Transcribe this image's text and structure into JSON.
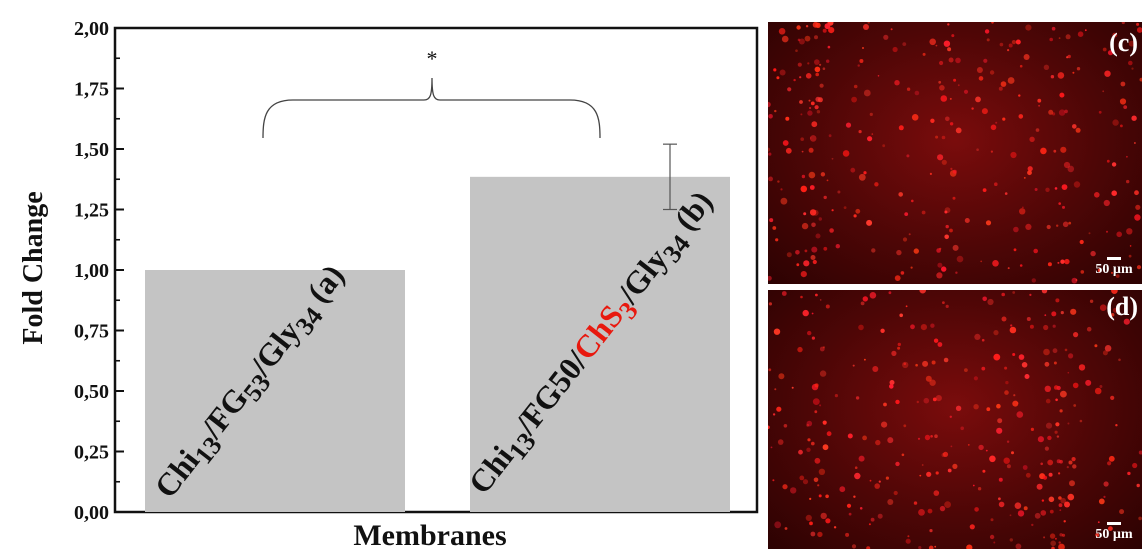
{
  "chart_data": {
    "type": "bar",
    "categories": [
      "Chi13/FG53/Gly34 (a)",
      "Chi13/FG50/ChS3/Gly34 (b)"
    ],
    "values": [
      1.0,
      1.385
    ],
    "error_bars": [
      null,
      0.135
    ],
    "ylabel": "Fold Change",
    "xlabel": "Membranes",
    "ylim": [
      0,
      2
    ],
    "yticks": [
      "0,00",
      "0,25",
      "0,50",
      "0,75",
      "1,00",
      "1,25",
      "1,50",
      "1,75",
      "2,00"
    ],
    "ytick_values": [
      0,
      0.25,
      0.5,
      0.75,
      1.0,
      1.25,
      1.5,
      1.75,
      2.0
    ],
    "significance": "*",
    "bar_color": "#c4c4c4",
    "highlight_color": "#e8190f",
    "bar_label_segments": [
      [
        {
          "t": "Chi",
          "s": "n"
        },
        {
          "t": "13",
          "s": "sub"
        },
        {
          "t": "/FG",
          "s": "n"
        },
        {
          "t": "53",
          "s": "sub"
        },
        {
          "t": "/Gly",
          "s": "n"
        },
        {
          "t": "34",
          "s": "sub"
        },
        {
          "t": " (a)",
          "s": "n"
        }
      ],
      [
        {
          "t": "Chi",
          "s": "n"
        },
        {
          "t": "13",
          "s": "sub"
        },
        {
          "t": "/FG50/",
          "s": "n"
        },
        {
          "t": "ChS",
          "s": "red"
        },
        {
          "t": "3",
          "s": "redsub"
        },
        {
          "t": "/Gly",
          "s": "n"
        },
        {
          "t": "34",
          "s": "sub"
        },
        {
          "t": " (b)",
          "s": "n"
        }
      ]
    ],
    "grid": false,
    "legend": "none"
  },
  "panels": [
    {
      "label": "(c)",
      "scale": "50 µm"
    },
    {
      "label": "(d)",
      "scale": "50 µm"
    }
  ]
}
